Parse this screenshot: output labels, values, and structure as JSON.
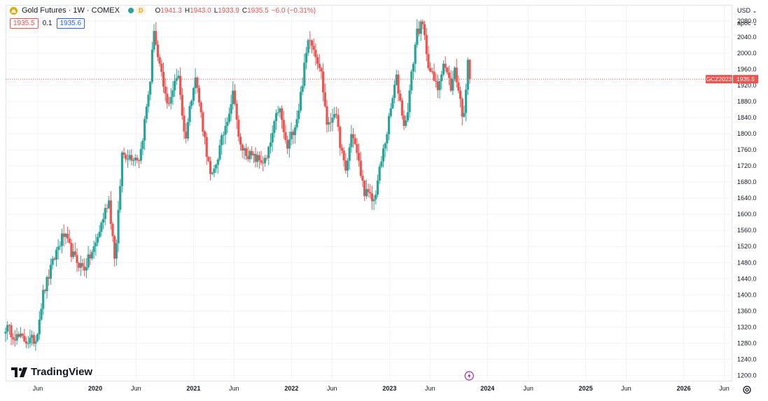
{
  "header": {
    "symbol": "Gold Futures · 1W · COMEX",
    "status_badge": "D",
    "ohlc": {
      "o_label": "O",
      "o": "1941.3",
      "h_label": "H",
      "h": "1943.0",
      "l_label": "L",
      "l": "1933.9",
      "c_label": "C",
      "c": "1935.5",
      "change": "−6.0 (−0.31%)"
    }
  },
  "price_boxes": {
    "sell": "1935.5",
    "spread": "0.1",
    "buy": "1935.6"
  },
  "toolbar": {
    "currency": "USD",
    "scale": "арос"
  },
  "price_label": {
    "ticker": "GCZ2023",
    "value": "1935.5"
  },
  "brand": "TradingView",
  "colors": {
    "up": "#26a69a",
    "down": "#ef5350",
    "grid": "#f0f3fa",
    "axis_text": "#131722"
  },
  "chart_data": {
    "type": "candlestick",
    "title": "Gold Futures · 1W · COMEX",
    "xlabel": "",
    "ylabel": "",
    "ylim": [
      1185,
      2120
    ],
    "yticks": [
      1200,
      1240,
      1280,
      1320,
      1360,
      1400,
      1440,
      1480,
      1520,
      1560,
      1600,
      1640,
      1680,
      1720,
      1760,
      1800,
      1840,
      1880,
      1920,
      1960,
      2000,
      2040,
      2080
    ],
    "ytick_labels": [
      "1200.0",
      "1240.0",
      "1280.0",
      "1320.0",
      "1360.0",
      "1400.0",
      "1440.0",
      "1480.0",
      "1520.0",
      "1560.0",
      "1600.0",
      "1640.0",
      "1680.0",
      "1720.0",
      "1760.0",
      "1800.0",
      "1840.0",
      "1880.0",
      "1920.0",
      "1960.0",
      "2000.0",
      "2040.0",
      "2080.0"
    ],
    "xticks": [
      "Jun",
      "2020",
      "Jun",
      "2021",
      "Jun",
      "2022",
      "Jun",
      "2023",
      "Jun",
      "2024",
      "Jun",
      "2025",
      "Jun",
      "2026",
      "Jun"
    ],
    "xtick_bold": [
      false,
      true,
      false,
      true,
      false,
      true,
      false,
      true,
      false,
      true,
      false,
      true,
      false,
      true,
      false
    ],
    "xrange": [
      "2019-02",
      "2026-07"
    ],
    "last_price": 1935.5,
    "anchors": [
      [
        "2019-02-01",
        1320
      ],
      [
        "2019-03-15",
        1295
      ],
      [
        "2019-05-01",
        1285
      ],
      [
        "2019-05-25",
        1290
      ],
      [
        "2019-06-20",
        1400
      ],
      [
        "2019-08-10",
        1510
      ],
      [
        "2019-09-05",
        1550
      ],
      [
        "2019-10-15",
        1490
      ],
      [
        "2019-11-20",
        1465
      ],
      [
        "2019-12-31",
        1520
      ],
      [
        "2020-02-20",
        1640
      ],
      [
        "2020-03-16",
        1480
      ],
      [
        "2020-04-10",
        1750
      ],
      [
        "2020-06-15",
        1740
      ],
      [
        "2020-07-27",
        1950
      ],
      [
        "2020-08-06",
        2070
      ],
      [
        "2020-08-20",
        1990
      ],
      [
        "2020-09-25",
        1870
      ],
      [
        "2020-11-06",
        1950
      ],
      [
        "2020-11-30",
        1780
      ],
      [
        "2021-01-06",
        1950
      ],
      [
        "2021-03-08",
        1680
      ],
      [
        "2021-04-15",
        1780
      ],
      [
        "2021-06-01",
        1910
      ],
      [
        "2021-06-20",
        1770
      ],
      [
        "2021-08-09",
        1740
      ],
      [
        "2021-09-29",
        1730
      ],
      [
        "2021-11-15",
        1870
      ],
      [
        "2021-12-15",
        1760
      ],
      [
        "2022-01-25",
        1850
      ],
      [
        "2022-03-08",
        2050
      ],
      [
        "2022-04-20",
        1960
      ],
      [
        "2022-05-16",
        1810
      ],
      [
        "2022-06-10",
        1860
      ],
      [
        "2022-07-21",
        1700
      ],
      [
        "2022-08-15",
        1810
      ],
      [
        "2022-09-28",
        1660
      ],
      [
        "2022-11-03",
        1630
      ],
      [
        "2022-12-27",
        1820
      ],
      [
        "2023-01-26",
        1940
      ],
      [
        "2023-02-28",
        1810
      ],
      [
        "2023-04-13",
        2055
      ],
      [
        "2023-05-04",
        2070
      ],
      [
        "2023-05-30",
        1960
      ],
      [
        "2023-06-29",
        1910
      ],
      [
        "2023-07-20",
        1980
      ],
      [
        "2023-08-21",
        1910
      ],
      [
        "2023-09-01",
        1965
      ],
      [
        "2023-10-05",
        1830
      ],
      [
        "2023-10-20",
        1995
      ],
      [
        "2023-10-31",
        1935.5
      ]
    ]
  }
}
